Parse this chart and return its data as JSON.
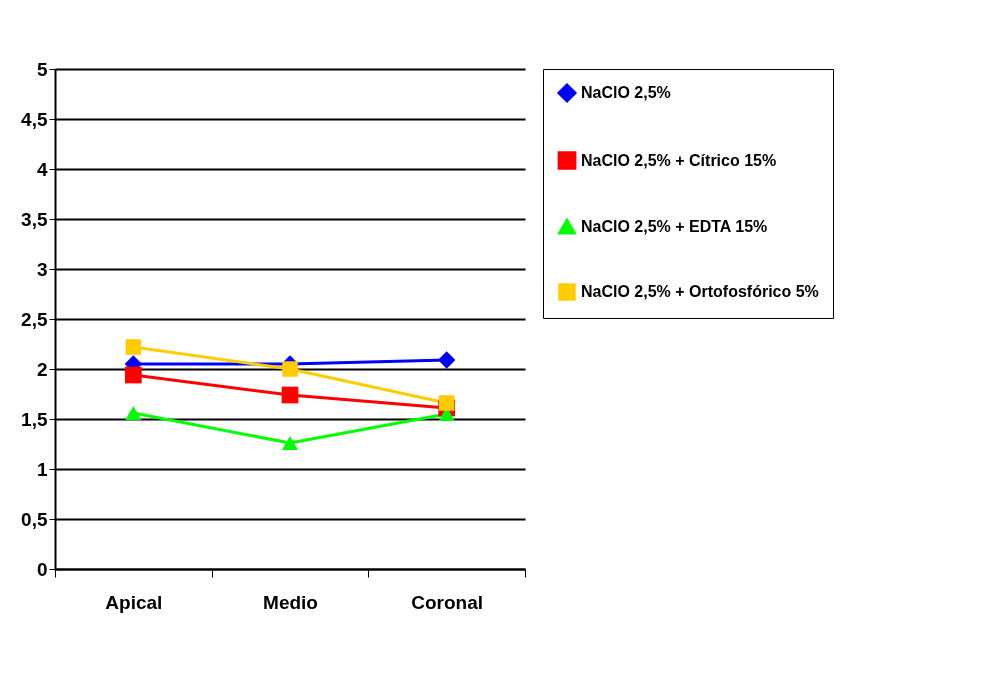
{
  "chart_data": {
    "type": "line",
    "categories": [
      "Apical",
      "Medio",
      "Coronal"
    ],
    "series": [
      {
        "name": "NaClO 2,5%",
        "color": "#0000ff",
        "marker": "diamond",
        "values": [
          2.05,
          2.05,
          2.09
        ]
      },
      {
        "name": "NaClO 2,5% + Cítrico 15%",
        "color": "#ff0000",
        "marker": "square",
        "values": [
          1.94,
          1.74,
          1.61
        ]
      },
      {
        "name": "NaClO 2,5% + EDTA 15%",
        "color": "#00ff00",
        "marker": "triangle",
        "values": [
          1.56,
          1.26,
          1.55
        ]
      },
      {
        "name": "NaClO 2,5% + Ortofosfórico 5%",
        "color": "#ffcc00",
        "marker": "square",
        "values": [
          2.22,
          2.0,
          1.66
        ]
      }
    ],
    "ylim": [
      0,
      5
    ],
    "yticks": [
      0,
      {
        "value": 0.5,
        "label": "0,5"
      },
      1,
      {
        "value": 1.5,
        "label": "1,5"
      },
      2,
      {
        "value": 2.5,
        "label": "2,5"
      },
      3,
      {
        "value": 3.5,
        "label": "3,5"
      },
      4,
      {
        "value": 4.5,
        "label": "4,5"
      },
      5
    ],
    "grid": "y",
    "legend": "right"
  }
}
